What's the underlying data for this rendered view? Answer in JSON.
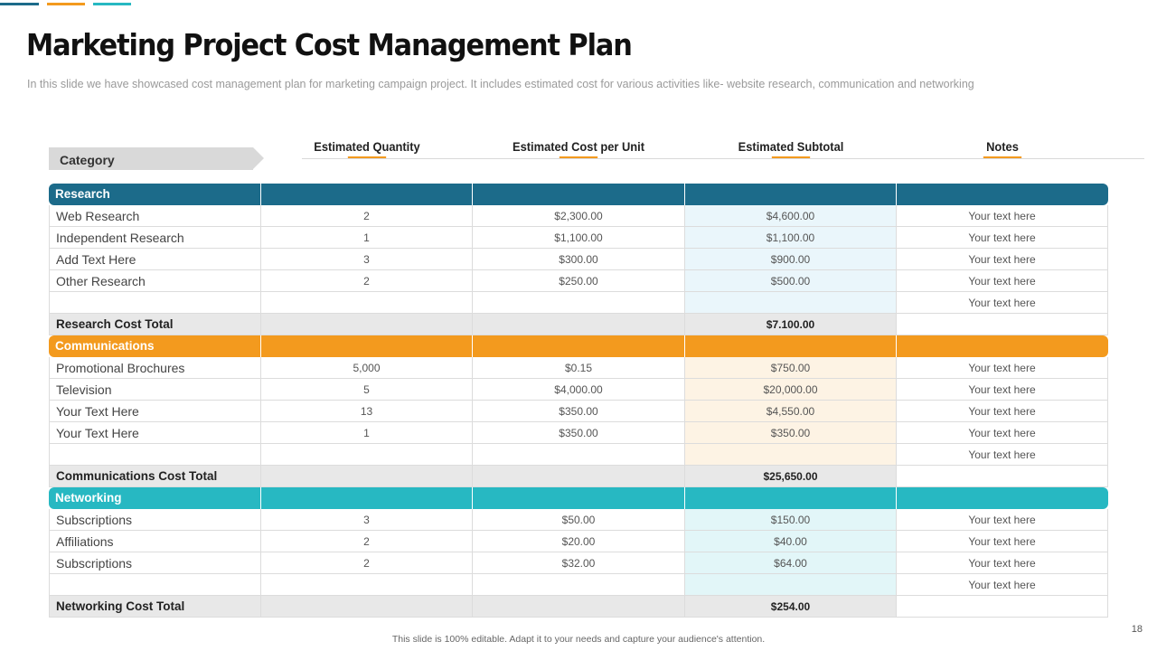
{
  "header": {
    "title": "Marketing Project Cost Management Plan",
    "subtitle": "In this slide we have showcased cost management plan for marketing campaign project. It includes estimated cost for various activities like- website research, communication and networking"
  },
  "colors": {
    "research": "#1c6b8a",
    "communications": "#f39a1e",
    "networking": "#27b8c2",
    "research_subtotal_bg": "#eaf6fb",
    "communications_subtotal_bg": "#fdf3e4",
    "networking_subtotal_bg": "#e2f6f8",
    "underline": "#f39a1e"
  },
  "table": {
    "category_label": "Category",
    "columns": [
      "Estimated Quantity",
      "Estimated Cost per Unit",
      "Estimated Subtotal",
      "Notes"
    ],
    "sections": [
      {
        "name": "Research",
        "color_key": "research",
        "rows": [
          {
            "category": "Web Research",
            "quantity": "2",
            "cost": "$2,300.00",
            "subtotal": "$4,600.00",
            "note": "Your text here"
          },
          {
            "category": "Independent Research",
            "quantity": "1",
            "cost": "$1,100.00",
            "subtotal": "$1,100.00",
            "note": "Your text here"
          },
          {
            "category": "Add Text Here",
            "quantity": "3",
            "cost": "$300.00",
            "subtotal": "$900.00",
            "note": "Your text here"
          },
          {
            "category": "Other Research",
            "quantity": "2",
            "cost": "$250.00",
            "subtotal": "$500.00",
            "note": "Your text here"
          },
          {
            "category": "",
            "quantity": "",
            "cost": "",
            "subtotal": "",
            "note": "Your text here"
          }
        ],
        "total_label": "Research Cost Total",
        "total_value": "$7.100.00"
      },
      {
        "name": "Communications",
        "color_key": "communications",
        "rows": [
          {
            "category": "Promotional Brochures",
            "quantity": "5,000",
            "cost": "$0.15",
            "subtotal": "$750.00",
            "note": "Your text here"
          },
          {
            "category": "Television",
            "quantity": "5",
            "cost": "$4,000.00",
            "subtotal": "$20,000.00",
            "note": "Your text here"
          },
          {
            "category": "Your Text Here",
            "quantity": "13",
            "cost": "$350.00",
            "subtotal": "$4,550.00",
            "note": "Your text here"
          },
          {
            "category": "Your Text Here",
            "quantity": "1",
            "cost": "$350.00",
            "subtotal": "$350.00",
            "note": "Your text here"
          },
          {
            "category": "",
            "quantity": "",
            "cost": "",
            "subtotal": "",
            "note": "Your text here"
          }
        ],
        "total_label": "Communications Cost Total",
        "total_value": "$25,650.00"
      },
      {
        "name": "Networking",
        "color_key": "networking",
        "rows": [
          {
            "category": "Subscriptions",
            "quantity": "3",
            "cost": "$50.00",
            "subtotal": "$150.00",
            "note": "Your text here"
          },
          {
            "category": "Affiliations",
            "quantity": "2",
            "cost": "$20.00",
            "subtotal": "$40.00",
            "note": "Your text here"
          },
          {
            "category": "Subscriptions",
            "quantity": "2",
            "cost": "$32.00",
            "subtotal": "$64.00",
            "note": "Your text here"
          },
          {
            "category": "",
            "quantity": "",
            "cost": "",
            "subtotal": "",
            "note": "Your text here"
          }
        ],
        "total_label": "Networking Cost Total",
        "total_value": "$254.00"
      }
    ]
  },
  "footer": {
    "text": "This slide is 100% editable. Adapt it to your needs and capture your audience's attention.",
    "page_number": "18"
  }
}
